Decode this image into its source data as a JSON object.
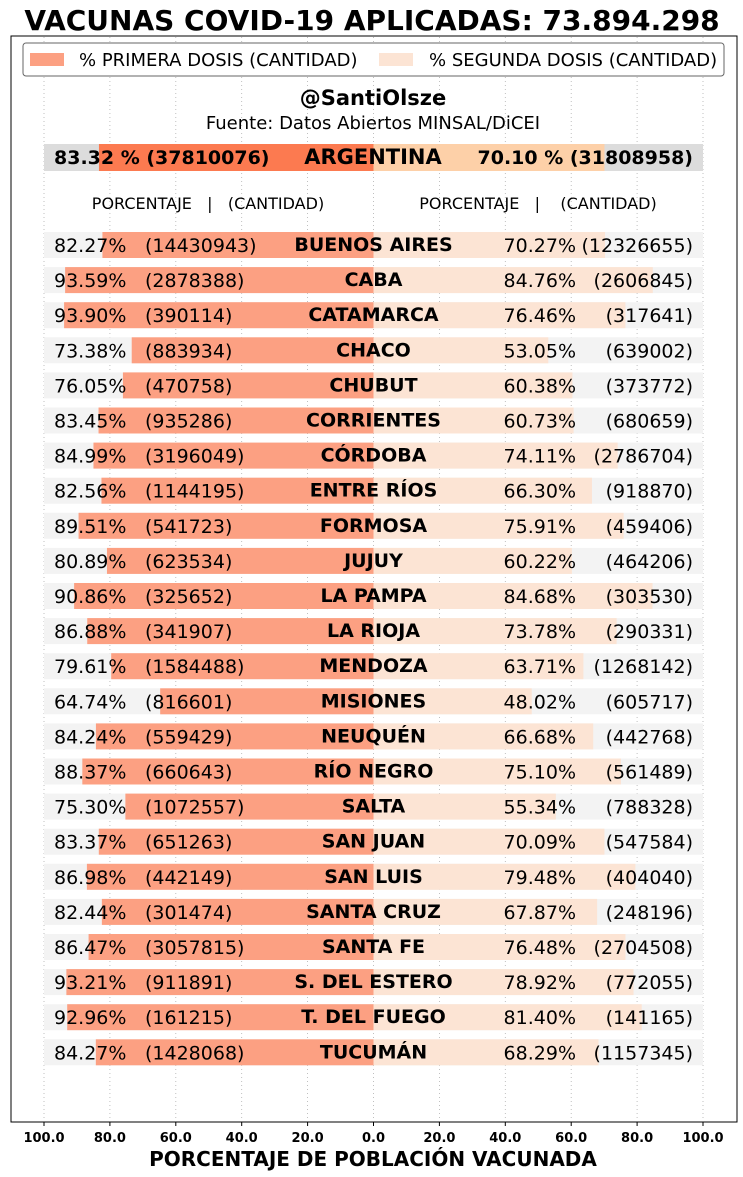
{
  "chart_data": {
    "type": "bar",
    "orientation": "horizontal-diverging",
    "title": "VACUNAS COVID-19 APLICADAS: 73.894.298",
    "author": "@SantiOlsze",
    "source": "Fuente: Datos Abiertos MINSAL/DiCEI",
    "xlabel": "PORCENTAJE DE POBLACIÓN VACUNADA",
    "xlim": [
      -100,
      100
    ],
    "xticks": [
      "100.0",
      "80.0",
      "60.0",
      "40.0",
      "20.0",
      "0.0",
      "20.0",
      "40.0",
      "60.0",
      "80.0",
      "100.0"
    ],
    "grid": true,
    "legend_position": "top",
    "legend": [
      "% PRIMERA DOSIS (CANTIDAD)",
      "% SEGUNDA DOSIS (CANTIDAD)"
    ],
    "column_header_left": "PORCENTAJE   |   (CANTIDAD)",
    "column_header_right": "PORCENTAJE   |    (CANTIDAD)",
    "colors": {
      "first_dose": "#fca082",
      "second_dose": "#fce4d4",
      "national_first": "#fc7a50",
      "national_second": "#fdd0a8",
      "row_background": "#f3f3f3",
      "national_background": "#dcdcdc"
    },
    "national": {
      "name": "ARGENTINA",
      "first_pct": 83.32,
      "first_count": "37810076",
      "first_label": "83.32 % (37810076)",
      "second_pct": 70.1,
      "second_count": "31808958",
      "second_label": "70.10 % (31808958)"
    },
    "rows": [
      {
        "name": "BUENOS AIRES",
        "first_pct": 82.27,
        "first_label": "82.27%",
        "first_count": "(14430943)",
        "second_pct": 70.27,
        "second_label": "70.27%",
        "second_count": "(12326655)"
      },
      {
        "name": "CABA",
        "first_pct": 93.59,
        "first_label": "93.59%",
        "first_count": "(2878388)",
        "second_pct": 84.76,
        "second_label": "84.76%",
        "second_count": "(2606845)"
      },
      {
        "name": "CATAMARCA",
        "first_pct": 93.9,
        "first_label": "93.90%",
        "first_count": "(390114)",
        "second_pct": 76.46,
        "second_label": "76.46%",
        "second_count": "(317641)"
      },
      {
        "name": "CHACO",
        "first_pct": 73.38,
        "first_label": "73.38%",
        "first_count": "(883934)",
        "second_pct": 53.05,
        "second_label": "53.05%",
        "second_count": "(639002)"
      },
      {
        "name": "CHUBUT",
        "first_pct": 76.05,
        "first_label": "76.05%",
        "first_count": "(470758)",
        "second_pct": 60.38,
        "second_label": "60.38%",
        "second_count": "(373772)"
      },
      {
        "name": "CORRIENTES",
        "first_pct": 83.45,
        "first_label": "83.45%",
        "first_count": "(935286)",
        "second_pct": 60.73,
        "second_label": "60.73%",
        "second_count": "(680659)"
      },
      {
        "name": "CÓRDOBA",
        "first_pct": 84.99,
        "first_label": "84.99%",
        "first_count": "(3196049)",
        "second_pct": 74.11,
        "second_label": "74.11%",
        "second_count": "(2786704)"
      },
      {
        "name": "ENTRE RÍOS",
        "first_pct": 82.56,
        "first_label": "82.56%",
        "first_count": "(1144195)",
        "second_pct": 66.3,
        "second_label": "66.30%",
        "second_count": "(918870)"
      },
      {
        "name": "FORMOSA",
        "first_pct": 89.51,
        "first_label": "89.51%",
        "first_count": "(541723)",
        "second_pct": 75.91,
        "second_label": "75.91%",
        "second_count": "(459406)"
      },
      {
        "name": "JUJUY",
        "first_pct": 80.89,
        "first_label": "80.89%",
        "first_count": "(623534)",
        "second_pct": 60.22,
        "second_label": "60.22%",
        "second_count": "(464206)"
      },
      {
        "name": "LA PAMPA",
        "first_pct": 90.86,
        "first_label": "90.86%",
        "first_count": "(325652)",
        "second_pct": 84.68,
        "second_label": "84.68%",
        "second_count": "(303530)"
      },
      {
        "name": "LA RIOJA",
        "first_pct": 86.88,
        "first_label": "86.88%",
        "first_count": "(341907)",
        "second_pct": 73.78,
        "second_label": "73.78%",
        "second_count": "(290331)"
      },
      {
        "name": "MENDOZA",
        "first_pct": 79.61,
        "first_label": "79.61%",
        "first_count": "(1584488)",
        "second_pct": 63.71,
        "second_label": "63.71%",
        "second_count": "(1268142)"
      },
      {
        "name": "MISIONES",
        "first_pct": 64.74,
        "first_label": "64.74%",
        "first_count": "(816601)",
        "second_pct": 48.02,
        "second_label": "48.02%",
        "second_count": "(605717)"
      },
      {
        "name": "NEUQUÉN",
        "first_pct": 84.24,
        "first_label": "84.24%",
        "first_count": "(559429)",
        "second_pct": 66.68,
        "second_label": "66.68%",
        "second_count": "(442768)"
      },
      {
        "name": "RÍO NEGRO",
        "first_pct": 88.37,
        "first_label": "88.37%",
        "first_count": "(660643)",
        "second_pct": 75.1,
        "second_label": "75.10%",
        "second_count": "(561489)"
      },
      {
        "name": "SALTA",
        "first_pct": 75.3,
        "first_label": "75.30%",
        "first_count": "(1072557)",
        "second_pct": 55.34,
        "second_label": "55.34%",
        "second_count": "(788328)"
      },
      {
        "name": "SAN JUAN",
        "first_pct": 83.37,
        "first_label": "83.37%",
        "first_count": "(651263)",
        "second_pct": 70.09,
        "second_label": "70.09%",
        "second_count": "(547584)"
      },
      {
        "name": "SAN LUIS",
        "first_pct": 86.98,
        "first_label": "86.98%",
        "first_count": "(442149)",
        "second_pct": 79.48,
        "second_label": "79.48%",
        "second_count": "(404040)"
      },
      {
        "name": "SANTA CRUZ",
        "first_pct": 82.44,
        "first_label": "82.44%",
        "first_count": "(301474)",
        "second_pct": 67.87,
        "second_label": "67.87%",
        "second_count": "(248196)"
      },
      {
        "name": "SANTA FE",
        "first_pct": 86.47,
        "first_label": "86.47%",
        "first_count": "(3057815)",
        "second_pct": 76.48,
        "second_label": "76.48%",
        "second_count": "(2704508)"
      },
      {
        "name": "S. DEL ESTERO",
        "first_pct": 93.21,
        "first_label": "93.21%",
        "first_count": "(911891)",
        "second_pct": 78.92,
        "second_label": "78.92%",
        "second_count": "(772055)"
      },
      {
        "name": "T. DEL FUEGO",
        "first_pct": 92.96,
        "first_label": "92.96%",
        "first_count": "(161215)",
        "second_pct": 81.4,
        "second_label": "81.40%",
        "second_count": "(141165)"
      },
      {
        "name": "TUCUMÁN",
        "first_pct": 84.27,
        "first_label": "84.27%",
        "first_count": "(1428068)",
        "second_pct": 68.29,
        "second_label": "68.29%",
        "second_count": "(1157345)"
      }
    ]
  }
}
